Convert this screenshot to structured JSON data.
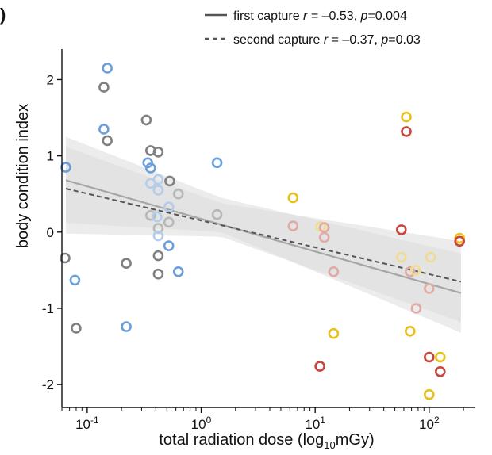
{
  "chart_data": {
    "type": "scatter",
    "panel_label": ")",
    "xlabel": {
      "main": "total radiation dose (log",
      "sub": "10",
      "unit": "mGy)"
    },
    "ylabel": "body condition index",
    "x_scale": "log10",
    "xlim": [
      0.06,
      250
    ],
    "ylim": [
      -2.3,
      2.4
    ],
    "x_ticks": [
      {
        "value": 0.1,
        "base": "10",
        "exp": "-1"
      },
      {
        "value": 1,
        "base": "10",
        "exp": "0"
      },
      {
        "value": 10,
        "base": "10",
        "exp": "1"
      },
      {
        "value": 100,
        "base": "10",
        "exp": "2"
      }
    ],
    "y_ticks": [
      {
        "value": 2,
        "label": "2"
      },
      {
        "value": 1,
        "label": "1"
      },
      {
        "value": 0,
        "label": "0"
      },
      {
        "value": -1,
        "label": "-1"
      },
      {
        "value": -2,
        "label": "-2"
      }
    ],
    "grid": false,
    "legend_position": "top-right",
    "legend": [
      {
        "style": "solid",
        "name": "first capture",
        "stat_r": "r",
        "r_val": " = –0.53, ",
        "stat_p": "p",
        "p_val": "=0.004"
      },
      {
        "style": "dashed",
        "name": "second capture",
        "stat_r": "r",
        "r_val": " = –0.37, ",
        "stat_p": "p",
        "p_val": "=0.03"
      }
    ],
    "colors": {
      "grey": "#808080",
      "grey_light": "#b8b8b8",
      "blue": "#6a9fdc",
      "blue_light": "#b3cdea",
      "yellow": "#e8c01a",
      "yellow_light": "#f0db8f",
      "red": "#c8463b",
      "red_light": "#e0aaa5",
      "fit_first": "#a6a6a6",
      "fit_second": "#555555",
      "ribbon": "#dcdcdc"
    },
    "fits": {
      "first": {
        "x": [
          0.065,
          190
        ],
        "y": [
          0.68,
          -0.8
        ]
      },
      "second": {
        "x": [
          0.065,
          190
        ],
        "y": [
          0.57,
          -0.65
        ]
      },
      "ribbon_first": {
        "x": [
          0.065,
          1.5,
          190
        ],
        "upper": [
          1.25,
          0.45,
          -0.28
        ],
        "lower": [
          0.12,
          0.0,
          -1.32
        ]
      },
      "ribbon_second": {
        "x": [
          0.065,
          1.5,
          190
        ],
        "upper": [
          1.12,
          0.38,
          -0.12
        ],
        "lower": [
          -0.02,
          -0.06,
          -1.18
        ]
      }
    },
    "points": [
      {
        "x": 0.15,
        "y": 2.15,
        "color": "blue"
      },
      {
        "x": 0.14,
        "y": 1.9,
        "color": "grey"
      },
      {
        "x": 0.14,
        "y": 1.35,
        "color": "blue"
      },
      {
        "x": 0.15,
        "y": 1.2,
        "color": "grey"
      },
      {
        "x": 0.065,
        "y": 0.85,
        "color": "blue"
      },
      {
        "x": 0.064,
        "y": -0.34,
        "color": "grey"
      },
      {
        "x": 0.078,
        "y": -0.63,
        "color": "blue"
      },
      {
        "x": 0.08,
        "y": -1.26,
        "color": "grey"
      },
      {
        "x": 0.22,
        "y": -0.41,
        "color": "grey"
      },
      {
        "x": 0.22,
        "y": -1.24,
        "color": "blue"
      },
      {
        "x": 0.33,
        "y": 1.47,
        "color": "grey"
      },
      {
        "x": 0.36,
        "y": 1.07,
        "color": "grey"
      },
      {
        "x": 0.42,
        "y": 1.05,
        "color": "grey"
      },
      {
        "x": 0.34,
        "y": 0.91,
        "color": "blue"
      },
      {
        "x": 0.36,
        "y": 0.84,
        "color": "blue"
      },
      {
        "x": 0.53,
        "y": 0.67,
        "color": "grey"
      },
      {
        "x": 0.36,
        "y": 0.64,
        "color": "blue_light"
      },
      {
        "x": 0.42,
        "y": 0.69,
        "color": "blue_light"
      },
      {
        "x": 0.42,
        "y": 0.55,
        "color": "blue_light"
      },
      {
        "x": 0.63,
        "y": 0.5,
        "color": "grey_light"
      },
      {
        "x": 0.52,
        "y": 0.33,
        "color": "blue_light"
      },
      {
        "x": 0.36,
        "y": 0.22,
        "color": "grey_light"
      },
      {
        "x": 0.41,
        "y": 0.2,
        "color": "blue_light"
      },
      {
        "x": 0.52,
        "y": 0.13,
        "color": "grey_light"
      },
      {
        "x": 0.42,
        "y": 0.05,
        "color": "grey_light"
      },
      {
        "x": 0.42,
        "y": -0.05,
        "color": "blue_light"
      },
      {
        "x": 0.52,
        "y": -0.18,
        "color": "blue"
      },
      {
        "x": 0.42,
        "y": -0.31,
        "color": "grey"
      },
      {
        "x": 0.42,
        "y": -0.55,
        "color": "grey"
      },
      {
        "x": 0.63,
        "y": -0.52,
        "color": "blue"
      },
      {
        "x": 1.38,
        "y": 0.91,
        "color": "blue"
      },
      {
        "x": 1.38,
        "y": 0.23,
        "color": "grey_light"
      },
      {
        "x": 6.4,
        "y": 0.45,
        "color": "yellow"
      },
      {
        "x": 6.4,
        "y": 0.08,
        "color": "red_light"
      },
      {
        "x": 11.2,
        "y": 0.07,
        "color": "yellow_light"
      },
      {
        "x": 12.0,
        "y": 0.06,
        "color": "red_light"
      },
      {
        "x": 12.0,
        "y": -0.07,
        "color": "red_light"
      },
      {
        "x": 14.5,
        "y": -0.52,
        "color": "red_light"
      },
      {
        "x": 14.5,
        "y": -1.33,
        "color": "yellow"
      },
      {
        "x": 11.0,
        "y": -1.76,
        "color": "red"
      },
      {
        "x": 63,
        "y": 1.51,
        "color": "yellow"
      },
      {
        "x": 63,
        "y": 1.32,
        "color": "red"
      },
      {
        "x": 57,
        "y": 0.03,
        "color": "red"
      },
      {
        "x": 57,
        "y": -0.33,
        "color": "yellow_light"
      },
      {
        "x": 68,
        "y": -0.52,
        "color": "red_light"
      },
      {
        "x": 76,
        "y": -0.5,
        "color": "yellow_light"
      },
      {
        "x": 103,
        "y": -0.33,
        "color": "yellow_light"
      },
      {
        "x": 100,
        "y": -0.74,
        "color": "red_light"
      },
      {
        "x": 77,
        "y": -1.0,
        "color": "red_light"
      },
      {
        "x": 68,
        "y": -1.3,
        "color": "yellow"
      },
      {
        "x": 100,
        "y": -1.64,
        "color": "red"
      },
      {
        "x": 125,
        "y": -1.64,
        "color": "yellow"
      },
      {
        "x": 125,
        "y": -1.83,
        "color": "red"
      },
      {
        "x": 100,
        "y": -2.13,
        "color": "yellow"
      },
      {
        "x": 185,
        "y": -0.08,
        "color": "yellow"
      },
      {
        "x": 185,
        "y": -0.12,
        "color": "red"
      }
    ]
  }
}
